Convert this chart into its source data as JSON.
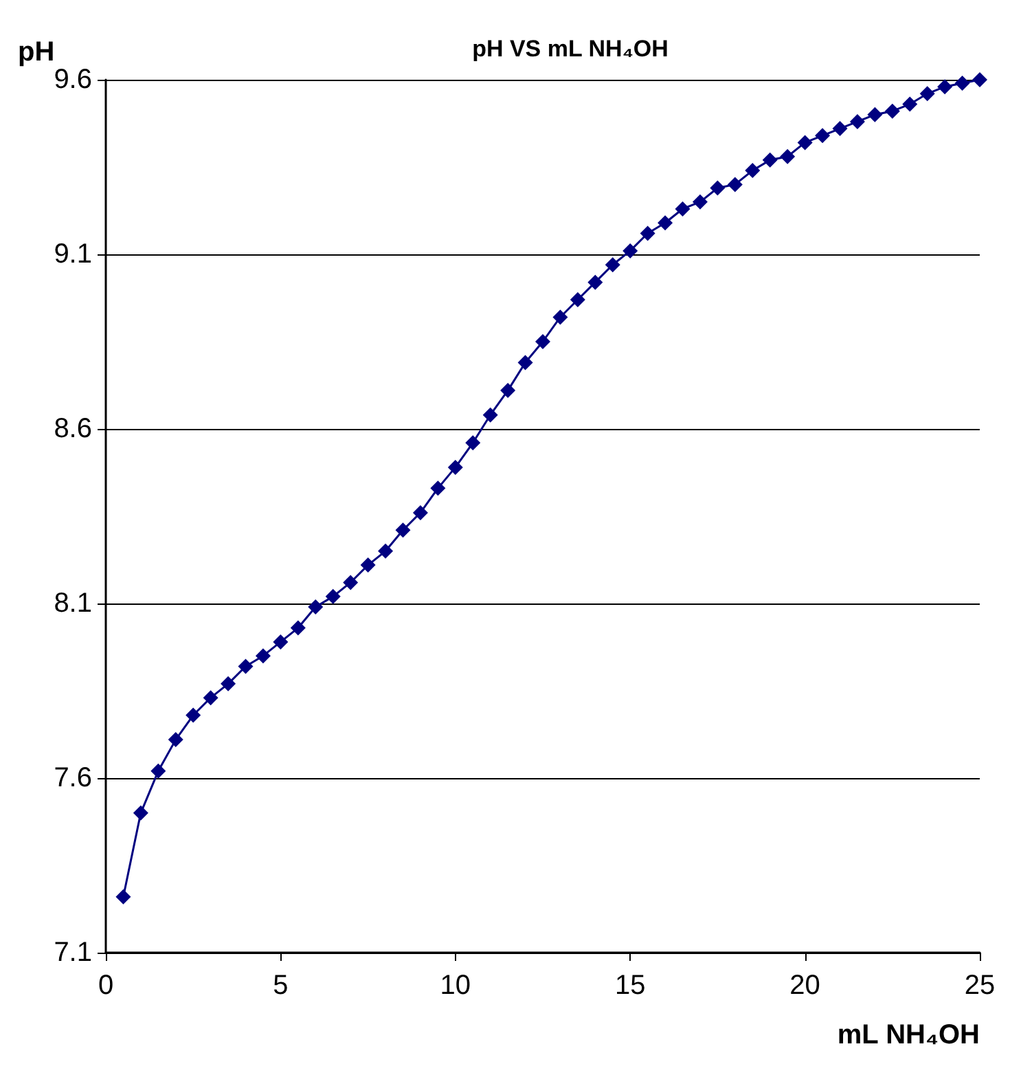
{
  "chart_data": {
    "type": "line",
    "title": "pH VS mL NH₄OH",
    "xlabel": "mL NH₄OH",
    "ylabel": "pH",
    "x": [
      0.5,
      1,
      1.5,
      2,
      2.5,
      3,
      3.5,
      4,
      4.5,
      5,
      5.5,
      6,
      6.5,
      7,
      7.5,
      8,
      8.5,
      9,
      9.5,
      10,
      10.5,
      11,
      11.5,
      12,
      12.5,
      13,
      13.5,
      14,
      14.5,
      15,
      15.5,
      16,
      16.5,
      17,
      17.5,
      18,
      18.5,
      19,
      19.5,
      20,
      20.5,
      21,
      21.5,
      22,
      22.5,
      23,
      23.5,
      24,
      24.5,
      25
    ],
    "series": [
      {
        "color": "#000080",
        "values": [
          7.26,
          7.5,
          7.62,
          7.71,
          7.78,
          7.83,
          7.87,
          7.92,
          7.95,
          7.99,
          8.03,
          8.09,
          8.12,
          8.16,
          8.21,
          8.25,
          8.31,
          8.36,
          8.43,
          8.49,
          8.56,
          8.64,
          8.71,
          8.79,
          8.85,
          8.92,
          8.97,
          9.02,
          9.07,
          9.11,
          9.16,
          9.19,
          9.23,
          9.25,
          9.29,
          9.3,
          9.34,
          9.37,
          9.38,
          9.42,
          9.44,
          9.46,
          9.48,
          9.5,
          9.51,
          9.53,
          9.56,
          9.58,
          9.59,
          9.6
        ]
      }
    ],
    "xlim": [
      0,
      25
    ],
    "xticks": [
      0,
      5,
      10,
      15,
      20,
      25
    ],
    "ylim": [
      7.1,
      9.6
    ],
    "yticks": [
      7.1,
      7.6,
      8.1,
      8.6,
      9.1,
      9.6
    ],
    "grid": "y",
    "marker": "diamond",
    "line_style": "solid"
  }
}
